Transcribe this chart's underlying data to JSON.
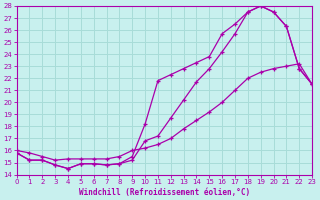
{
  "xlabel": "Windchill (Refroidissement éolien,°C)",
  "xlim": [
    0,
    23
  ],
  "ylim": [
    14,
    28
  ],
  "yticks": [
    14,
    15,
    16,
    17,
    18,
    19,
    20,
    21,
    22,
    23,
    24,
    25,
    26,
    27,
    28
  ],
  "xticks": [
    0,
    1,
    2,
    3,
    4,
    5,
    6,
    7,
    8,
    9,
    10,
    11,
    12,
    13,
    14,
    15,
    16,
    17,
    18,
    19,
    20,
    21,
    22,
    23
  ],
  "bg_color": "#c8f0ee",
  "grid_color": "#a8dcd8",
  "line_color": "#aa00aa",
  "line1_x": [
    0,
    1,
    2,
    3,
    4,
    5,
    6,
    7,
    8,
    9,
    10,
    11,
    12,
    13,
    14,
    15,
    16,
    17,
    18,
    19,
    20,
    21,
    22,
    23
  ],
  "line1_y": [
    15.8,
    15.2,
    15.2,
    14.8,
    14.5,
    14.9,
    14.9,
    14.8,
    14.9,
    15.2,
    16.8,
    17.2,
    18.7,
    20.2,
    21.7,
    22.8,
    24.2,
    25.7,
    27.5,
    28.0,
    27.5,
    26.3,
    22.8,
    21.5
  ],
  "line2_x": [
    0,
    1,
    2,
    3,
    4,
    5,
    6,
    7,
    8,
    9,
    10,
    11,
    12,
    13,
    14,
    15,
    16,
    17,
    18,
    19,
    20,
    21,
    22,
    23
  ],
  "line2_y": [
    15.8,
    15.2,
    15.2,
    14.8,
    14.5,
    14.9,
    14.9,
    14.8,
    14.9,
    15.5,
    18.2,
    21.8,
    22.3,
    22.8,
    23.3,
    23.8,
    25.7,
    26.5,
    27.5,
    28.0,
    27.5,
    26.3,
    22.8,
    21.5
  ],
  "line3_x": [
    0,
    1,
    2,
    3,
    4,
    5,
    6,
    7,
    8,
    9,
    10,
    11,
    12,
    13,
    14,
    15,
    16,
    17,
    18,
    19,
    20,
    21,
    22,
    23
  ],
  "line3_y": [
    16.0,
    15.8,
    15.5,
    15.2,
    15.3,
    15.3,
    15.3,
    15.3,
    15.5,
    16.0,
    16.2,
    16.5,
    17.0,
    17.8,
    18.5,
    19.2,
    20.0,
    21.0,
    22.0,
    22.5,
    22.8,
    23.0,
    23.2,
    21.5
  ]
}
